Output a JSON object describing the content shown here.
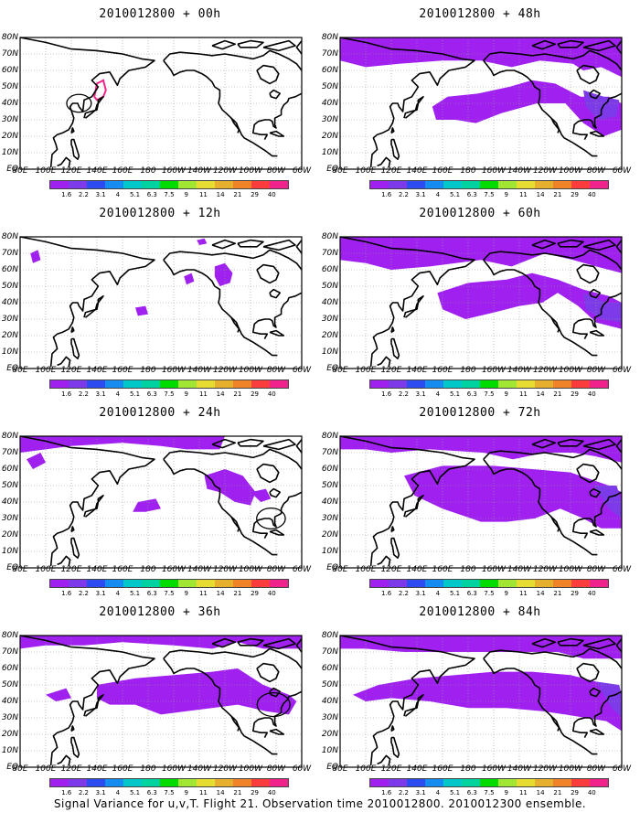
{
  "caption": "Signal Variance for u,v,T. Flight 21. Observation time 2010012800. 2010012300 ensemble.",
  "lon_labels": [
    "80E",
    "100E",
    "120E",
    "140E",
    "160E",
    "180",
    "160W",
    "140W",
    "120W",
    "100W",
    "80W",
    "60W"
  ],
  "lat_labels": [
    "80N",
    "70N",
    "60N",
    "50N",
    "40N",
    "30N",
    "20N",
    "10N",
    "EQ"
  ],
  "colorbar": {
    "labels": [
      "1.6",
      "2.2",
      "3.1",
      "4",
      "5.1",
      "6.3",
      "7.5",
      "9",
      "11",
      "14",
      "21",
      "29",
      "40"
    ],
    "colors": [
      "#a020f0",
      "#7c3ae8",
      "#2c4bf0",
      "#148cf0",
      "#00c8c8",
      "#00d2a0",
      "#00dc00",
      "#a0e632",
      "#e6dc32",
      "#e6af2d",
      "#f08228",
      "#fa3c3c",
      "#f0238c"
    ]
  },
  "panels": [
    {
      "title": "2010012800 + 00h"
    },
    {
      "title": "2010012800 + 48h"
    },
    {
      "title": "2010012800 + 12h"
    },
    {
      "title": "2010012800 + 60h"
    },
    {
      "title": "2010012800 + 24h"
    },
    {
      "title": "2010012800 + 72h"
    },
    {
      "title": "2010012800 + 36h"
    },
    {
      "title": "2010012800 + 84h"
    }
  ],
  "map": {
    "lon_range": [
      "80E",
      "60W"
    ],
    "lat_range": [
      "EQ",
      "80N"
    ],
    "grid": "dotted",
    "projection": "lat-lon"
  }
}
